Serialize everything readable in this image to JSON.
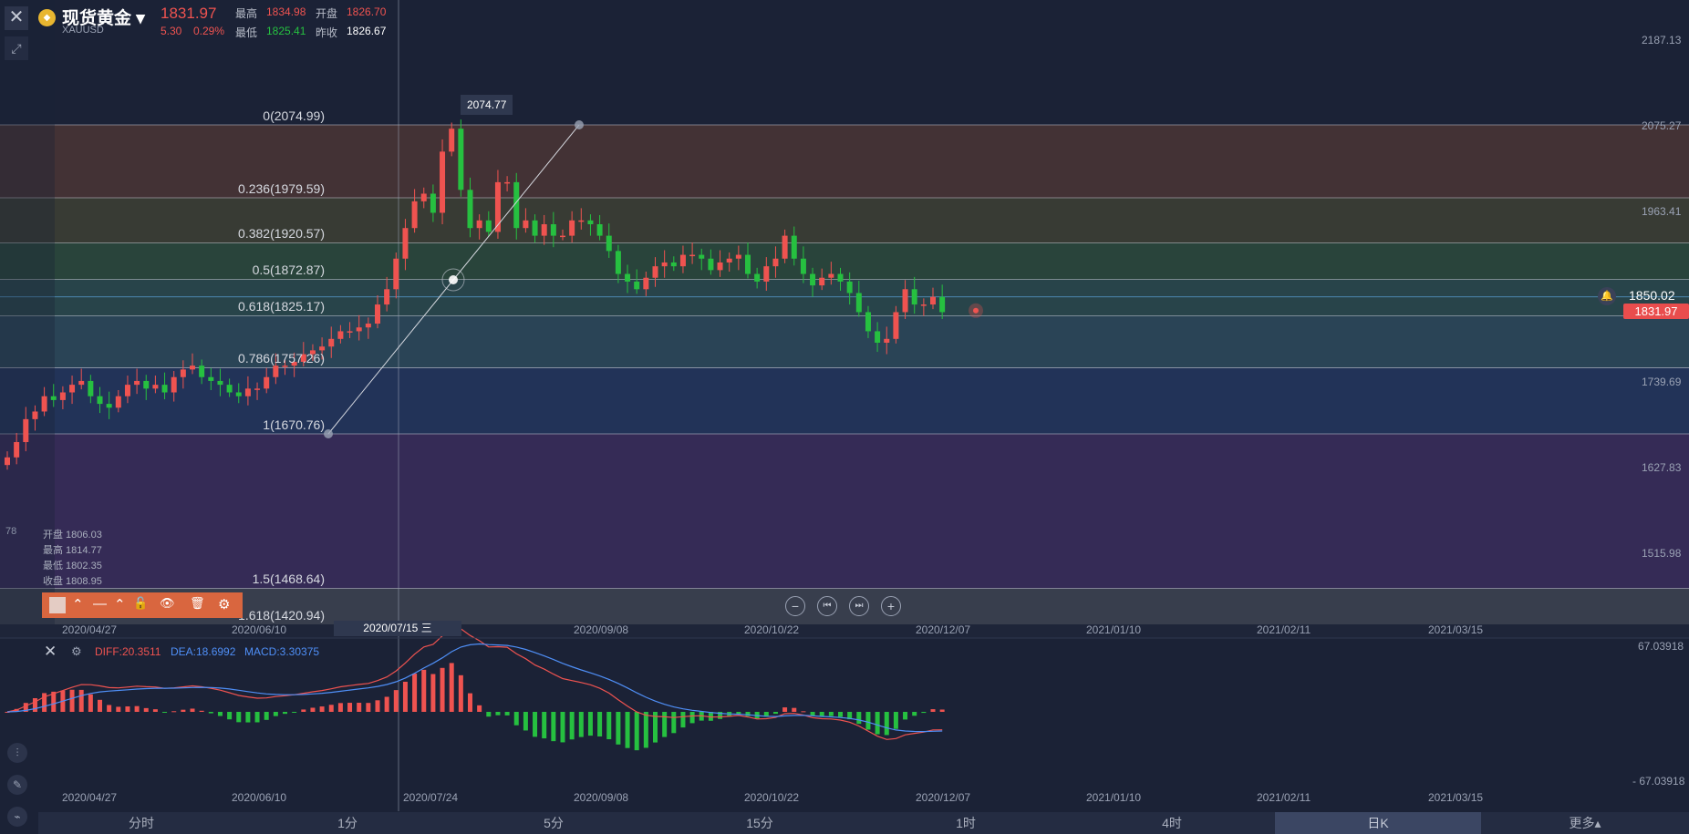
{
  "header": {
    "symbol_name": "现货黄金",
    "dropdown_glyph": "▾",
    "symbol_code": "XAUUSD",
    "last_price": "1831.97",
    "change": "5.30",
    "change_pct": "0.29%",
    "high_label": "最高",
    "high_value": "1834.98",
    "open_label": "开盘",
    "open_value": "1826.70",
    "low_label": "最低",
    "low_value": "1825.41",
    "prevclose_label": "昨收",
    "prevclose_value": "1826.67"
  },
  "icons": {
    "gold": "coin-icon",
    "close": "close-icon",
    "expand": "expand-arrows-icon",
    "bell": "bell-icon"
  },
  "ohlc_readout": {
    "left_price_fragment": "78",
    "open": "开盘 1806.03",
    "high": "最高 1814.77",
    "low": "最低 1802.35",
    "close": "收盘 1808.95"
  },
  "fib_levels": [
    {
      "label": "0(2074.99)",
      "price": 2074.99
    },
    {
      "label": "0.236(1979.59)",
      "price": 1979.59
    },
    {
      "label": "0.382(1920.57)",
      "price": 1920.57
    },
    {
      "label": "0.5(1872.87)",
      "price": 1872.87
    },
    {
      "label": "0.618(1825.17)",
      "price": 1825.17
    },
    {
      "label": "0.786(1757.26)",
      "price": 1757.26
    },
    {
      "label": "1(1670.76)",
      "price": 1670.76
    },
    {
      "label": "1.5(1468.64)",
      "price": 1468.64
    },
    {
      "label": "1.618(1420.94)",
      "price": 1420.94
    }
  ],
  "fib_colors": [
    "#4a3535",
    "#3d3f34",
    "#2c4a3c",
    "#2a4a4e",
    "#2d4a5c",
    "#23365e",
    "#3a2d5c",
    "#3d4351",
    "#4a2d6a"
  ],
  "price_axis": [
    "2187.13",
    "2075.27",
    "1963.41",
    "1739.69",
    "1627.83",
    "1515.98"
  ],
  "price_tag_current": "1831.97",
  "price_tag_alert": "1850.02",
  "peak_tooltip": "2074.77",
  "date_axis": [
    "2020/04/27",
    "2020/06/10",
    "2020/07/24",
    "2020/09/08",
    "2020/10/22",
    "2020/12/07",
    "2021/01/10",
    "2021/02/11",
    "2021/03/15"
  ],
  "crosshair_date": "2020/07/15 三",
  "draw_toolbar": {
    "caret1": "⌃",
    "line": "—",
    "caret2": "⌃",
    "lock": "🔓",
    "eye": "👁",
    "trash": "🗑",
    "gear": "⚙"
  },
  "nav_buttons": {
    "zoom_out": "−",
    "prev": "⏮",
    "next": "⏭",
    "zoom_in": "+"
  },
  "macd": {
    "close_glyph": "✕",
    "gear_glyph": "⚙",
    "diff": "DIFF:20.3511",
    "dea": "DEA:18.6992",
    "macd": "MACD:3.30375",
    "axis_top": "67.03918",
    "axis_bottom": "- 67.03918"
  },
  "tabs": [
    {
      "label": "分时",
      "active": false
    },
    {
      "label": "1分",
      "active": false
    },
    {
      "label": "5分",
      "active": false
    },
    {
      "label": "15分",
      "active": false
    },
    {
      "label": "1时",
      "active": false
    },
    {
      "label": "4时",
      "active": false
    },
    {
      "label": "日K",
      "active": true
    },
    {
      "label": "更多▴",
      "active": false
    }
  ],
  "colors": {
    "up": "#ef5350",
    "down": "#26c040",
    "diff": "#ef5350",
    "dea": "#4f8ff7"
  },
  "chart_data": {
    "type": "candlestick",
    "title": "",
    "ylim": [
      1420,
      2190
    ],
    "series_close": [
      1640,
      1660,
      1690,
      1700,
      1720,
      1715,
      1725,
      1735,
      1740,
      1720,
      1710,
      1705,
      1720,
      1735,
      1740,
      1730,
      1735,
      1725,
      1745,
      1755,
      1760,
      1745,
      1740,
      1735,
      1725,
      1720,
      1730,
      1730,
      1745,
      1760,
      1760,
      1765,
      1775,
      1780,
      1785,
      1795,
      1805,
      1805,
      1810,
      1815,
      1840,
      1860,
      1900,
      1940,
      1975,
      1985,
      1960,
      2040,
      2070,
      1990,
      1940,
      1950,
      1935,
      2000,
      2000,
      1940,
      1950,
      1930,
      1945,
      1930,
      1930,
      1950,
      1950,
      1945,
      1930,
      1910,
      1880,
      1870,
      1860,
      1875,
      1890,
      1895,
      1890,
      1905,
      1905,
      1900,
      1885,
      1895,
      1900,
      1905,
      1880,
      1870,
      1890,
      1900,
      1930,
      1900,
      1880,
      1865,
      1875,
      1880,
      1870,
      1855,
      1830,
      1805,
      1790,
      1795,
      1830,
      1860,
      1840,
      1840,
      1850,
      1830
    ]
  }
}
